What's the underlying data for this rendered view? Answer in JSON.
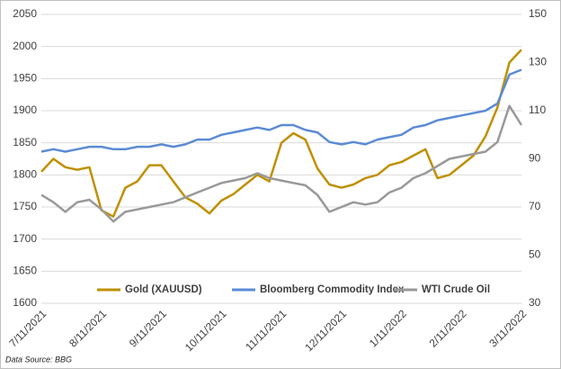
{
  "chart_data": {
    "type": "line",
    "categories": [
      "7/11/2021",
      null,
      null,
      null,
      null,
      "8/11/2021",
      null,
      null,
      null,
      null,
      "9/11/2021",
      null,
      null,
      null,
      null,
      "10/11/2021",
      null,
      null,
      null,
      null,
      "11/11/2021",
      null,
      null,
      null,
      null,
      "12/11/2021",
      null,
      null,
      null,
      null,
      "1/11/2022",
      null,
      null,
      null,
      null,
      "2/11/2022",
      null,
      null,
      null,
      null,
      "3/11/2022"
    ],
    "series": [
      {
        "name": "Gold (XAUUSD)",
        "color": "#BF9000",
        "values": [
          1805,
          1825,
          1812,
          1808,
          1812,
          1745,
          1735,
          1780,
          1790,
          1815,
          1815,
          1790,
          1765,
          1755,
          1740,
          1760,
          1770,
          1785,
          1800,
          1790,
          1850,
          1865,
          1855,
          1810,
          1785,
          1780,
          1785,
          1795,
          1800,
          1815,
          1820,
          1830,
          1840,
          1795,
          1800,
          1815,
          1830,
          1860,
          1905,
          1975,
          1995
        ]
      },
      {
        "name": "Bloomberg Commodity Index",
        "color": "#5B8BD4",
        "axis": "y2",
        "values": [
          93,
          94,
          93,
          94,
          95,
          95,
          94,
          94,
          95,
          95,
          96,
          95,
          96,
          98,
          98,
          100,
          101,
          102,
          103,
          102,
          104,
          104,
          102,
          101,
          97,
          96,
          97,
          96,
          98,
          99,
          100,
          103,
          104,
          106,
          107,
          108,
          109,
          110,
          113,
          125,
          127
        ]
      },
      {
        "name": "WTI Crude Oil",
        "color": "#999999",
        "axis": "y2",
        "values": [
          75,
          72,
          68,
          72,
          73,
          69,
          64,
          68,
          69,
          70,
          71,
          72,
          74,
          76,
          78,
          80,
          81,
          82,
          84,
          82,
          81,
          80,
          79,
          75,
          68,
          70,
          72,
          71,
          72,
          76,
          78,
          82,
          84,
          87,
          90,
          91,
          92,
          93,
          97,
          112,
          104
        ]
      }
    ],
    "ylim": [
      1600,
      2050
    ],
    "yticks": [
      1600,
      1650,
      1700,
      1750,
      1800,
      1850,
      1900,
      1950,
      2000,
      2050
    ],
    "y2lim": [
      30,
      150
    ],
    "y2ticks": [
      30,
      50,
      70,
      90,
      110,
      130,
      150
    ],
    "grid": true,
    "legend": "bottom",
    "source": "Data Source: BBG"
  }
}
